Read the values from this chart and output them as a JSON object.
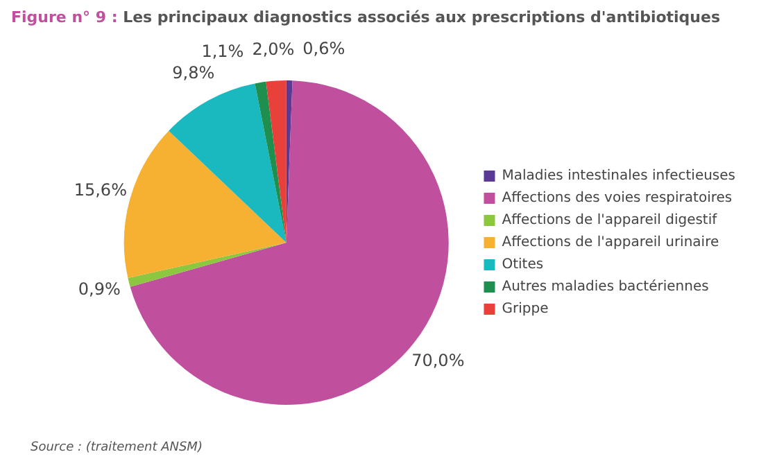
{
  "chart_data": {
    "type": "pie",
    "title": "Figure n° 9 : Les principaux diagnostics associés aux prescriptions d'antibiotiques",
    "categories": [
      "Maladies intestinales infectieuses",
      "Affections des voies respiratoires",
      "Affections de l'appareil digestif",
      "Affections de l'appareil urinaire",
      "Otites",
      "Autres maladies bactériennes",
      "Grippe"
    ],
    "values": [
      0.6,
      70.0,
      0.9,
      15.6,
      9.8,
      1.1,
      2.0
    ],
    "value_labels": [
      "0,6%",
      "70,0%",
      "0,9%",
      "15,6%",
      "9,8%",
      "1,1%",
      "2,0%"
    ],
    "colors": [
      "#5b3a96",
      "#c0509e",
      "#8dc63f",
      "#f6b133",
      "#1ab8bf",
      "#1e8f4e",
      "#e8413c"
    ],
    "legend": "right",
    "annotations": [
      "Source : (traitement ANSM)"
    ]
  }
}
